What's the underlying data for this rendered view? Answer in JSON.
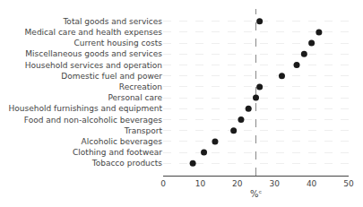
{
  "chart_data": {
    "type": "scatter",
    "categories": [
      "Total goods and services",
      "Medical care and health expenses",
      "Current housing costs",
      "Miscellaneous goods and services",
      "Household services and operation",
      "Domestic fuel and power",
      "Recreation",
      "Personal care",
      "Household furnishings and equipment",
      "Food and non-alcoholic beverages",
      "Transport",
      "Alcoholic beverages",
      "Clothing and footwear",
      "Tobacco products"
    ],
    "values": [
      26,
      42,
      40,
      38,
      36,
      32,
      26,
      25,
      23,
      21,
      19,
      14,
      11,
      8
    ],
    "color": "#1a1a1a",
    "marker": "circle",
    "xlabel": "%ᶜ",
    "xlim": [
      0,
      50
    ],
    "xticks": [
      0,
      10,
      20,
      30,
      40,
      50
    ],
    "reference_line": {
      "x": 25,
      "color": "#888888",
      "line_style": "dashed"
    },
    "grid": "y"
  }
}
